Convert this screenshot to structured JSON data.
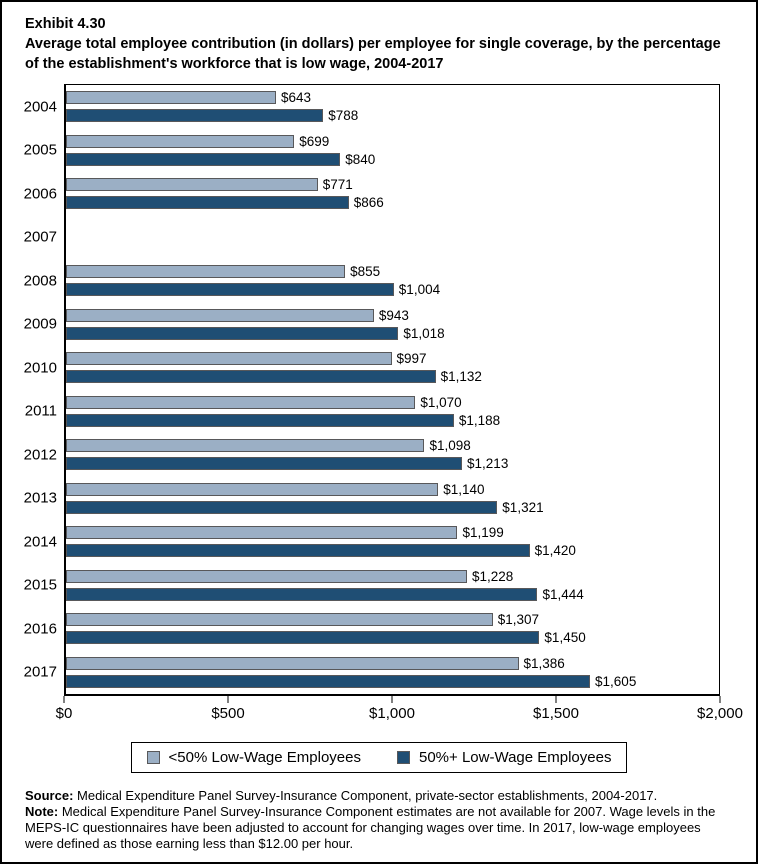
{
  "header": {
    "exhibit_label": "Exhibit 4.30",
    "title": "Average total employee contribution (in dollars) per employee for single coverage, by the percentage of the establishment's workforce that is low wage, 2004-2017"
  },
  "chart_data": {
    "type": "bar",
    "orientation": "horizontal",
    "title": "Average total employee contribution (in dollars) per employee for single coverage, by the percentage of the establishment's workforce that is low wage, 2004-2017",
    "categories": [
      "2004",
      "2005",
      "2006",
      "2007",
      "2008",
      "2009",
      "2010",
      "2011",
      "2012",
      "2013",
      "2014",
      "2015",
      "2016",
      "2017"
    ],
    "series": [
      {
        "name": "<50% Low-Wage Employees",
        "color": "#9BAFC5",
        "values": [
          643,
          699,
          771,
          null,
          855,
          943,
          997,
          1070,
          1098,
          1140,
          1199,
          1228,
          1307,
          1386
        ],
        "labels": [
          "$643",
          "$699",
          "$771",
          null,
          "$855",
          "$943",
          "$997",
          "$1,070",
          "$1,098",
          "$1,140",
          "$1,199",
          "$1,228",
          "$1,307",
          "$1,386"
        ]
      },
      {
        "name": "50%+ Low-Wage Employees",
        "color": "#1F4E74",
        "values": [
          788,
          840,
          866,
          null,
          1004,
          1018,
          1132,
          1188,
          1213,
          1321,
          1420,
          1444,
          1450,
          1605
        ],
        "labels": [
          "$788",
          "$840",
          "$866",
          null,
          "$1,004",
          "$1,018",
          "$1,132",
          "$1,188",
          "$1,213",
          "$1,321",
          "$1,420",
          "$1,444",
          "$1,450",
          "$1,605"
        ]
      }
    ],
    "xlim": [
      0,
      2000
    ],
    "x_ticks": [
      "$0",
      "$500",
      "$1,000",
      "$1,500",
      "$2,000"
    ],
    "grid": false,
    "legend_position": "bottom",
    "missing_data_note": "estimates not available for 2007"
  },
  "colors": {
    "light_series": "#9BAFC5",
    "dark_series": "#1F4E74",
    "bar_border": "#58585A",
    "axis": "#000000"
  },
  "footer": {
    "source_label": "Source:",
    "source_text": " Medical Expenditure Panel Survey-Insurance Component, private-sector establishments, 2004-2017.",
    "note_label": "Note:",
    "note_text": " Medical Expenditure Panel Survey-Insurance Component estimates are not available for 2007. Wage levels in the MEPS-IC questionnaires have been adjusted to account for changing wages over time. In 2017, low-wage employees were defined as those earning less than $12.00 per hour."
  }
}
